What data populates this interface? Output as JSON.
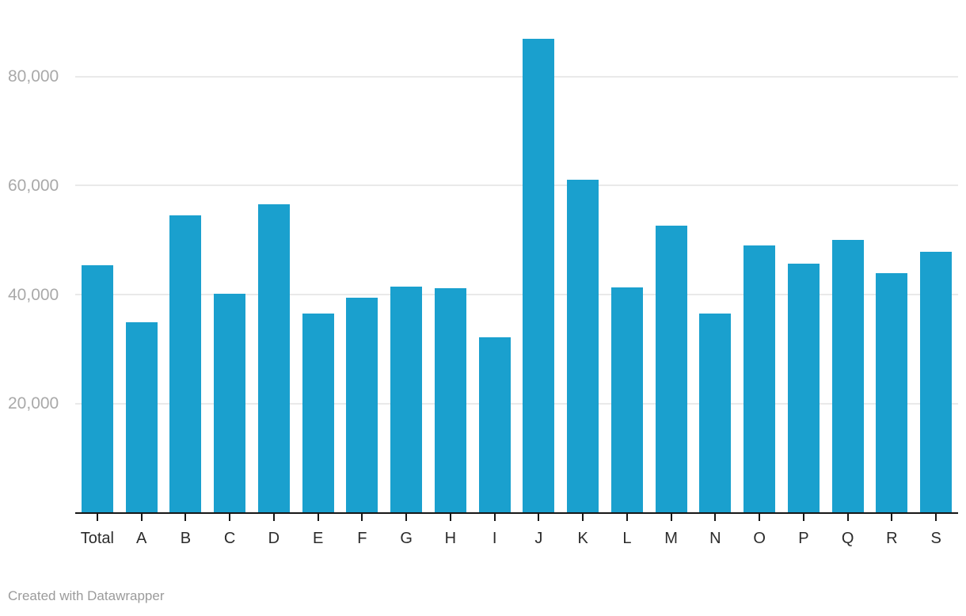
{
  "chart_data": {
    "type": "bar",
    "title": "",
    "xlabel": "",
    "ylabel": "",
    "categories": [
      "Total",
      "A",
      "B",
      "C",
      "D",
      "E",
      "F",
      "G",
      "H",
      "I",
      "J",
      "K",
      "L",
      "M",
      "N",
      "O",
      "P",
      "Q",
      "R",
      "S"
    ],
    "values": [
      45400,
      35000,
      54500,
      40100,
      56500,
      36600,
      39500,
      41400,
      41200,
      32200,
      87000,
      61100,
      41300,
      52700,
      36500,
      49000,
      45700,
      50000,
      43900,
      47900
    ],
    "ylim": [
      0,
      90000
    ],
    "yticks": [
      20000,
      40000,
      60000,
      80000
    ],
    "ytick_labels": [
      "20,000",
      "40,000",
      "60,000",
      "80,000"
    ],
    "grid": "horizontal",
    "legend": "none"
  },
  "colors": {
    "bar": "#1aa0ce",
    "gridline": "#e9e9e9",
    "axis_line": "#161616",
    "tick_mark": "#161616",
    "y_tick_label": "#a9a9a9",
    "x_tick_label": "#2b2b2b",
    "credit_text": "#9b9b9b"
  },
  "footer": {
    "credit": "Created with Datawrapper"
  }
}
